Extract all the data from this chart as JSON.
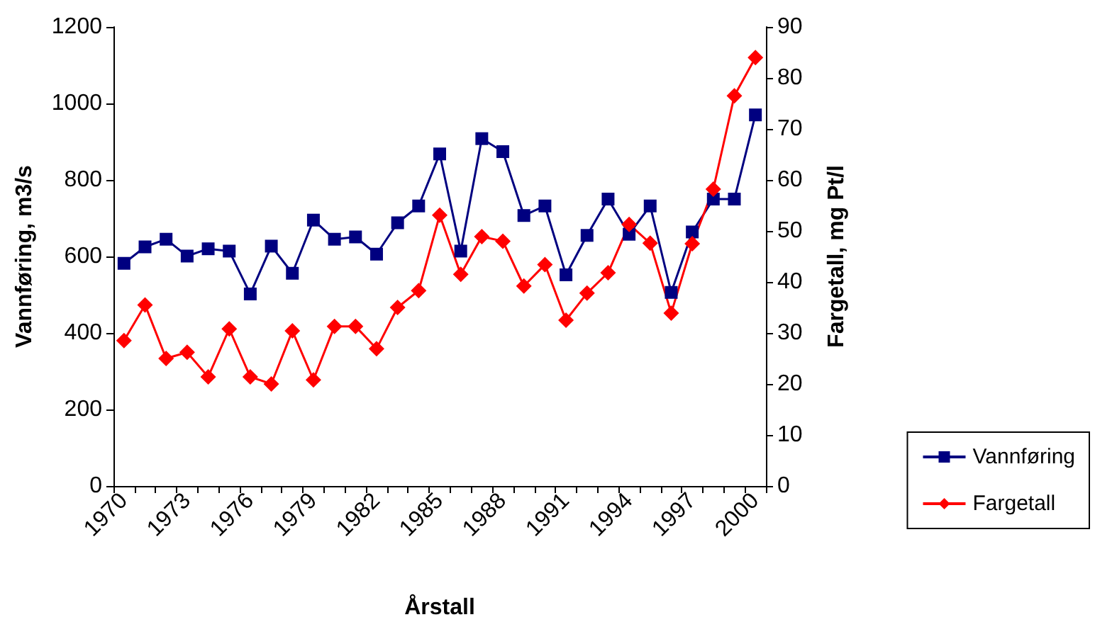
{
  "chart_data": {
    "type": "line",
    "xlabel": "Årstall",
    "ylabel": "Vannføring, m3/s",
    "y2label": "Fargetall, mg Pt/l",
    "categories": [
      "1970",
      null,
      null,
      "1973",
      null,
      null,
      "1976",
      null,
      null,
      "1979",
      null,
      null,
      "1982",
      null,
      null,
      "1985",
      null,
      null,
      "1988",
      null,
      null,
      "1991",
      null,
      null,
      "1994",
      null,
      null,
      "1997",
      null,
      null,
      "2000"
    ],
    "series": [
      {
        "name": "Vannføring",
        "color": "#000080",
        "marker": "square",
        "values": [
          582,
          625,
          645,
          601,
          620,
          614,
          502,
          627,
          556,
          695,
          645,
          651,
          606,
          688,
          732,
          868,
          614,
          908,
          874,
          707,
          732,
          552,
          655,
          750,
          658,
          732,
          506,
          664,
          750,
          750,
          970
        ]
      },
      {
        "name": "Fargetall",
        "color": "#ff0000",
        "marker": "diamond",
        "axis": "y2",
        "values": [
          28.5,
          35.5,
          25.0,
          26.2,
          21.4,
          30.8,
          21.4,
          20.0,
          30.4,
          20.8,
          31.3,
          31.3,
          26.9,
          35.0,
          38.3,
          53.1,
          41.5,
          48.9,
          48.0,
          39.2,
          43.4,
          32.5,
          37.8,
          41.8,
          51.3,
          47.6,
          33.9,
          47.5,
          58.2,
          76.5,
          84.0
        ]
      }
    ],
    "ylim": [
      0,
      1200
    ],
    "yticks": [
      0,
      200,
      400,
      600,
      800,
      1000,
      1200
    ],
    "y2lim": [
      0,
      90
    ],
    "y2ticks": [
      0,
      10,
      20,
      30,
      40,
      50,
      60,
      70,
      80,
      90
    ],
    "grid": false,
    "legend": "right",
    "line_style": "solid"
  }
}
